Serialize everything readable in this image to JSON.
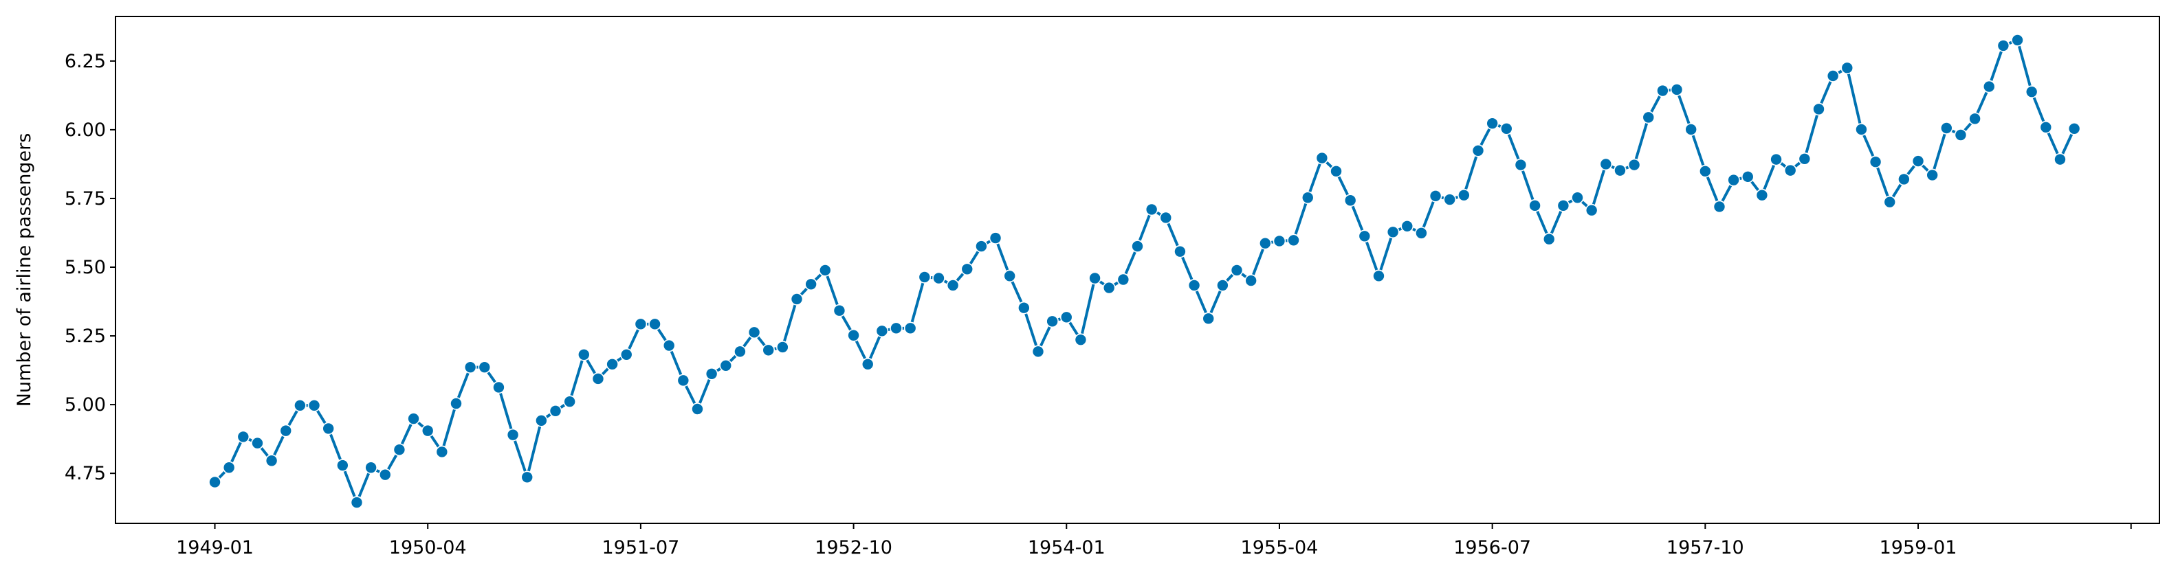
{
  "chart_data": {
    "type": "line",
    "ylabel": "Number of airline passengers",
    "color": "#0072b2",
    "marker": "circle",
    "x": [
      "1949-01",
      "1949-02",
      "1949-03",
      "1949-04",
      "1949-05",
      "1949-06",
      "1949-07",
      "1949-08",
      "1949-09",
      "1949-10",
      "1949-11",
      "1949-12",
      "1950-01",
      "1950-02",
      "1950-03",
      "1950-04",
      "1950-05",
      "1950-06",
      "1950-07",
      "1950-08",
      "1950-09",
      "1950-10",
      "1950-11",
      "1950-12",
      "1951-01",
      "1951-02",
      "1951-03",
      "1951-04",
      "1951-05",
      "1951-06",
      "1951-07",
      "1951-08",
      "1951-09",
      "1951-10",
      "1951-11",
      "1951-12",
      "1952-01",
      "1952-02",
      "1952-03",
      "1952-04",
      "1952-05",
      "1952-06",
      "1952-07",
      "1952-08",
      "1952-09",
      "1952-10",
      "1952-11",
      "1952-12",
      "1953-01",
      "1953-02",
      "1953-03",
      "1953-04",
      "1953-05",
      "1953-06",
      "1953-07",
      "1953-08",
      "1953-09",
      "1953-10",
      "1953-11",
      "1953-12",
      "1954-01",
      "1954-02",
      "1954-03",
      "1954-04",
      "1954-05",
      "1954-06",
      "1954-07",
      "1954-08",
      "1954-09",
      "1954-10",
      "1954-11",
      "1954-12",
      "1955-01",
      "1955-02",
      "1955-03",
      "1955-04",
      "1955-05",
      "1955-06",
      "1955-07",
      "1955-08",
      "1955-09",
      "1955-10",
      "1955-11",
      "1955-12",
      "1956-01",
      "1956-02",
      "1956-03",
      "1956-04",
      "1956-05",
      "1956-06",
      "1956-07",
      "1956-08",
      "1956-09",
      "1956-10",
      "1956-11",
      "1956-12",
      "1957-01",
      "1957-02",
      "1957-03",
      "1957-04",
      "1957-05",
      "1957-06",
      "1957-07",
      "1957-08",
      "1957-09",
      "1957-10",
      "1957-11",
      "1957-12",
      "1958-01",
      "1958-02",
      "1958-03",
      "1958-04",
      "1958-05",
      "1958-06",
      "1958-07",
      "1958-08",
      "1958-09",
      "1958-10",
      "1958-11",
      "1958-12",
      "1959-01",
      "1959-02",
      "1959-03",
      "1959-04",
      "1959-05",
      "1959-06",
      "1959-07",
      "1959-08",
      "1959-09",
      "1959-10",
      "1959-11",
      "1959-12"
    ],
    "values": [
      4.718,
      4.771,
      4.883,
      4.86,
      4.796,
      4.905,
      4.997,
      4.997,
      4.913,
      4.779,
      4.644,
      4.771,
      4.745,
      4.836,
      4.949,
      4.905,
      4.828,
      5.004,
      5.136,
      5.136,
      5.063,
      4.89,
      4.736,
      4.942,
      4.977,
      5.011,
      5.182,
      5.094,
      5.147,
      5.182,
      5.293,
      5.293,
      5.215,
      5.088,
      4.984,
      5.112,
      5.142,
      5.193,
      5.263,
      5.198,
      5.209,
      5.384,
      5.438,
      5.489,
      5.342,
      5.252,
      5.147,
      5.268,
      5.278,
      5.278,
      5.464,
      5.46,
      5.434,
      5.493,
      5.576,
      5.606,
      5.468,
      5.352,
      5.193,
      5.303,
      5.318,
      5.236,
      5.46,
      5.425,
      5.455,
      5.576,
      5.71,
      5.68,
      5.557,
      5.434,
      5.313,
      5.434,
      5.489,
      5.451,
      5.587,
      5.595,
      5.598,
      5.753,
      5.897,
      5.849,
      5.743,
      5.613,
      5.468,
      5.628,
      5.649,
      5.624,
      5.759,
      5.746,
      5.762,
      5.924,
      6.023,
      6.004,
      5.872,
      5.724,
      5.602,
      5.724,
      5.753,
      5.707,
      5.875,
      5.852,
      5.872,
      6.045,
      6.142,
      6.146,
      6.001,
      5.849,
      5.72,
      5.817,
      5.829,
      5.762,
      5.892,
      5.852,
      5.894,
      6.075,
      6.196,
      6.225,
      6.001,
      5.883,
      5.737,
      5.82,
      5.886,
      5.835,
      6.006,
      5.981,
      6.04,
      6.157,
      6.306,
      6.326,
      6.138,
      6.009,
      5.892,
      6.004
    ],
    "xlim": [
      "1948-06",
      "1960-06"
    ],
    "xticks": [
      "1949-01",
      "1950-04",
      "1951-07",
      "1952-10",
      "1954-01",
      "1955-04",
      "1956-07",
      "1957-10",
      "1959-01",
      {
        "value": "1960-04",
        "label": null
      }
    ],
    "ylim": [
      4.568,
      6.412
    ],
    "yticks": [
      {
        "value": 4.75,
        "label": "4.75"
      },
      {
        "value": 5,
        "label": "5.00"
      },
      5.25,
      {
        "value": 5.5,
        "label": "5.50"
      },
      {
        "value": 5.75,
        "label": "5.75"
      },
      {
        "value": 6,
        "label": "6.00"
      },
      6.25
    ],
    "grid": false
  }
}
